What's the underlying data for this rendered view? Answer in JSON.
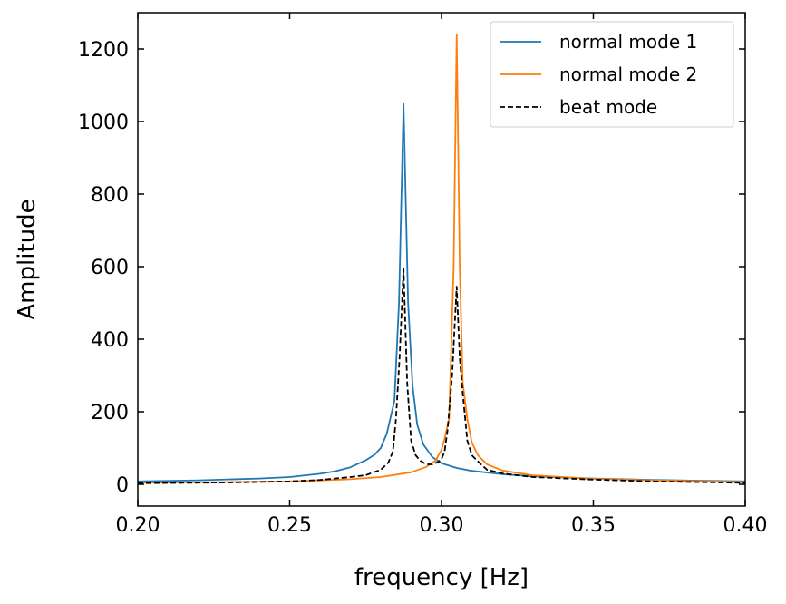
{
  "chart_data": {
    "type": "line",
    "title": "",
    "xlabel": "frequency [Hz]",
    "ylabel": "Amplitude",
    "xlim": [
      0.2,
      0.4
    ],
    "ylim": [
      -60,
      1300
    ],
    "x_ticks": [
      0.2,
      0.25,
      0.3,
      0.35,
      0.4
    ],
    "x_tick_labels": [
      "0.20",
      "0.25",
      "0.30",
      "0.35",
      "0.40"
    ],
    "y_ticks": [
      0,
      200,
      400,
      600,
      800,
      1000,
      1200
    ],
    "y_tick_labels": [
      "0",
      "200",
      "400",
      "600",
      "800",
      "1000",
      "1200"
    ],
    "grid": false,
    "legend_position": "top-right",
    "series": [
      {
        "name": "normal mode 1",
        "color": "#1f77b4",
        "dash": "solid",
        "points": [
          [
            0.2,
            8
          ],
          [
            0.22,
            11
          ],
          [
            0.24,
            16
          ],
          [
            0.25,
            20
          ],
          [
            0.26,
            29
          ],
          [
            0.265,
            36
          ],
          [
            0.27,
            47
          ],
          [
            0.275,
            66
          ],
          [
            0.278,
            82
          ],
          [
            0.28,
            100
          ],
          [
            0.282,
            140
          ],
          [
            0.2845,
            230
          ],
          [
            0.286,
            500
          ],
          [
            0.2875,
            1048
          ],
          [
            0.289,
            500
          ],
          [
            0.2905,
            270
          ],
          [
            0.292,
            165
          ],
          [
            0.294,
            110
          ],
          [
            0.297,
            75
          ],
          [
            0.3,
            58
          ],
          [
            0.305,
            45
          ],
          [
            0.31,
            37
          ],
          [
            0.32,
            28
          ],
          [
            0.33,
            22
          ],
          [
            0.35,
            16
          ],
          [
            0.37,
            12
          ],
          [
            0.4,
            8
          ]
        ]
      },
      {
        "name": "normal mode 2",
        "color": "#ff7f0e",
        "dash": "solid",
        "points": [
          [
            0.2,
            4
          ],
          [
            0.23,
            6
          ],
          [
            0.25,
            8
          ],
          [
            0.27,
            14
          ],
          [
            0.28,
            20
          ],
          [
            0.29,
            33
          ],
          [
            0.295,
            48
          ],
          [
            0.298,
            65
          ],
          [
            0.3,
            95
          ],
          [
            0.301,
            125
          ],
          [
            0.3025,
            180
          ],
          [
            0.304,
            600
          ],
          [
            0.305,
            1240
          ],
          [
            0.306,
            600
          ],
          [
            0.307,
            280
          ],
          [
            0.3085,
            180
          ],
          [
            0.31,
            115
          ],
          [
            0.312,
            80
          ],
          [
            0.315,
            55
          ],
          [
            0.32,
            38
          ],
          [
            0.33,
            25
          ],
          [
            0.35,
            15
          ],
          [
            0.37,
            11
          ],
          [
            0.4,
            6
          ]
        ]
      },
      {
        "name": "beat mode",
        "color": "#000000",
        "dash": "dashed",
        "points": [
          [
            0.2,
            3
          ],
          [
            0.23,
            5
          ],
          [
            0.25,
            8
          ],
          [
            0.26,
            12
          ],
          [
            0.27,
            20
          ],
          [
            0.275,
            25
          ],
          [
            0.28,
            40
          ],
          [
            0.2825,
            60
          ],
          [
            0.284,
            90
          ],
          [
            0.285,
            180
          ],
          [
            0.2862,
            350
          ],
          [
            0.2875,
            595
          ],
          [
            0.2887,
            280
          ],
          [
            0.29,
            120
          ],
          [
            0.2915,
            80
          ],
          [
            0.293,
            65
          ],
          [
            0.295,
            55
          ],
          [
            0.297,
            55
          ],
          [
            0.299,
            62
          ],
          [
            0.3,
            70
          ],
          [
            0.301,
            90
          ],
          [
            0.302,
            150
          ],
          [
            0.3035,
            300
          ],
          [
            0.305,
            545
          ],
          [
            0.306,
            350
          ],
          [
            0.307,
            250
          ],
          [
            0.3085,
            120
          ],
          [
            0.31,
            80
          ],
          [
            0.313,
            55
          ],
          [
            0.315,
            40
          ],
          [
            0.32,
            30
          ],
          [
            0.33,
            20
          ],
          [
            0.35,
            13
          ],
          [
            0.37,
            8
          ],
          [
            0.4,
            4
          ]
        ]
      }
    ]
  }
}
